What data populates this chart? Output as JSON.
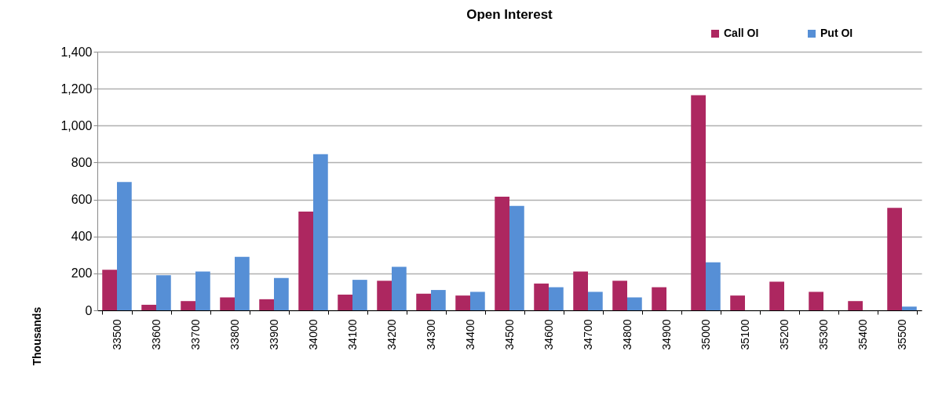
{
  "chart_data": {
    "type": "bar",
    "title": "Open Interest",
    "ylabel": "Thousands",
    "categories": [
      "33500",
      "33600",
      "33700",
      "33800",
      "33900",
      "34000",
      "34100",
      "34200",
      "34300",
      "34400",
      "34500",
      "34600",
      "34700",
      "34800",
      "34900",
      "35000",
      "35100",
      "35200",
      "35300",
      "35400",
      "35500"
    ],
    "series": [
      {
        "name": "Call OI",
        "color": "#ad2760",
        "values": [
          220,
          30,
          50,
          70,
          60,
          535,
          85,
          160,
          90,
          80,
          615,
          145,
          210,
          160,
          125,
          1165,
          80,
          155,
          100,
          50,
          555
        ]
      },
      {
        "name": "Put OI",
        "color": "#568fd6",
        "values": [
          695,
          190,
          210,
          290,
          175,
          845,
          165,
          235,
          110,
          100,
          565,
          125,
          100,
          70,
          0,
          260,
          0,
          0,
          0,
          0,
          20
        ]
      }
    ],
    "ylim": [
      0,
      1400
    ],
    "yticks": [
      0,
      200,
      400,
      600,
      800,
      {
        "value": 1000,
        "label": "1,000"
      },
      {
        "value": 1200,
        "label": "1,200"
      },
      {
        "value": 1400,
        "label": "1,400"
      }
    ],
    "grid": "y",
    "legend": "top right"
  }
}
